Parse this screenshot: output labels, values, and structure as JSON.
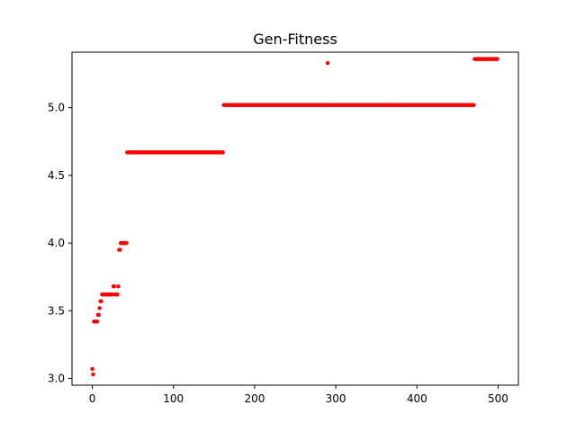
{
  "chart_data": {
    "type": "scatter",
    "title": "Gen-Fitness",
    "xlabel": "",
    "ylabel": "",
    "xlim": [
      -25,
      525
    ],
    "ylim": [
      2.95,
      5.41
    ],
    "xticks": [
      0,
      100,
      200,
      300,
      400,
      500
    ],
    "xtick_labels": [
      "0",
      "100",
      "200",
      "300",
      "400",
      "500"
    ],
    "yticks": [
      3.0,
      3.5,
      4.0,
      4.5,
      5.0
    ],
    "ytick_labels": [
      "3.0",
      "3.5",
      "4.0",
      "4.5",
      "5.0"
    ],
    "grid": false,
    "marker_color": "#ff0000",
    "series": [
      {
        "name": "",
        "segments": [
          {
            "x_start": 0,
            "x_end": 0,
            "y": 3.07
          },
          {
            "x_start": 1,
            "x_end": 1,
            "y": 3.03
          },
          {
            "x_start": 2,
            "x_end": 6,
            "y": 3.42
          },
          {
            "x_start": 7,
            "x_end": 8,
            "y": 3.47
          },
          {
            "x_start": 9,
            "x_end": 9,
            "y": 3.52
          },
          {
            "x_start": 10,
            "x_end": 11,
            "y": 3.57
          },
          {
            "x_start": 12,
            "x_end": 25,
            "y": 3.62
          },
          {
            "x_start": 26,
            "x_end": 27,
            "y": 3.68
          },
          {
            "x_start": 28,
            "x_end": 31,
            "y": 3.62
          },
          {
            "x_start": 32,
            "x_end": 32,
            "y": 3.68
          },
          {
            "x_start": 33,
            "x_end": 34,
            "y": 3.95
          },
          {
            "x_start": 35,
            "x_end": 42,
            "y": 4.0
          },
          {
            "x_start": 43,
            "x_end": 161,
            "y": 4.67
          },
          {
            "x_start": 162,
            "x_end": 289,
            "y": 5.02
          },
          {
            "x_start": 290,
            "x_end": 290,
            "y": 5.33
          },
          {
            "x_start": 291,
            "x_end": 470,
            "y": 5.02
          },
          {
            "x_start": 471,
            "x_end": 499,
            "y": 5.36
          }
        ]
      }
    ]
  }
}
